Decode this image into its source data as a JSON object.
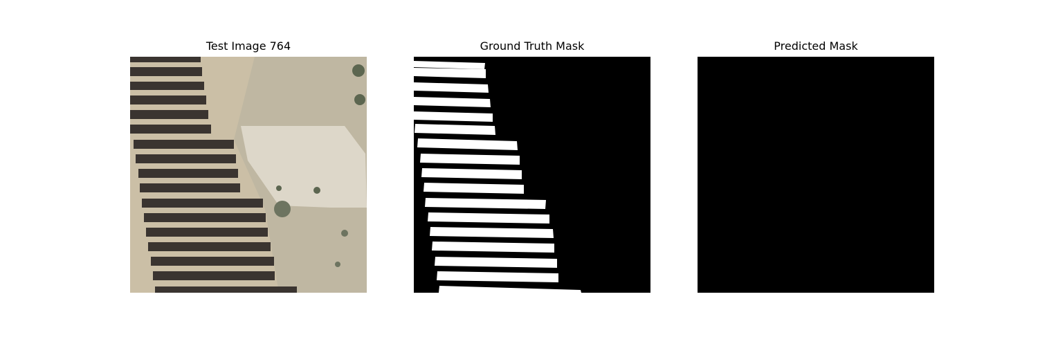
{
  "panels": [
    {
      "title": "Test Image 764",
      "kind": "aerial-photo"
    },
    {
      "title": "Ground Truth Mask",
      "kind": "binary-mask"
    },
    {
      "title": "Predicted Mask",
      "kind": "binary-mask-empty"
    }
  ],
  "colors": {
    "background": "#ffffff",
    "mask_fg": "#ffffff",
    "mask_bg": "#000000",
    "terrain": "#cbbfa6",
    "panel_row": "#3a3430",
    "concrete": "#ddd7c9",
    "vegetation": "#5c6650"
  }
}
